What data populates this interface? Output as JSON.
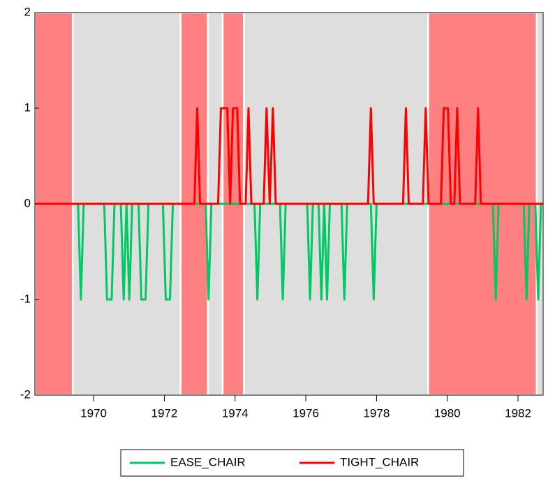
{
  "chart_data": {
    "type": "line",
    "xlim": [
      1968.34,
      1982.71
    ],
    "xticks": [
      1970,
      1972,
      1974,
      1976,
      1978,
      1980,
      1982
    ],
    "ylim": [
      -2,
      2
    ],
    "yticks": [
      2,
      1,
      0,
      -1,
      -2
    ],
    "regions": [
      {
        "start": 1968.34,
        "end": 1969.41,
        "color": "#ff8080"
      },
      {
        "start": 1969.41,
        "end": 1972.46,
        "color": "#dedede"
      },
      {
        "start": 1972.46,
        "end": 1973.23,
        "color": "#ff8080"
      },
      {
        "start": 1973.23,
        "end": 1973.65,
        "color": "#dedede"
      },
      {
        "start": 1973.65,
        "end": 1974.25,
        "color": "#ff8080"
      },
      {
        "start": 1974.25,
        "end": 1979.46,
        "color": "#dedede"
      },
      {
        "start": 1979.46,
        "end": 1982.53,
        "color": "#ff8080"
      },
      {
        "start": 1982.53,
        "end": 1982.71,
        "color": "#dedede"
      }
    ],
    "series": [
      {
        "name": "EASE_CHAIR",
        "color": "#00c864",
        "x": [
          1968.34,
          1969.56,
          1969.64,
          1969.72,
          1970.3,
          1970.38,
          1970.51,
          1970.59,
          1970.77,
          1970.85,
          1970.93,
          1971.01,
          1971.09,
          1971.27,
          1971.35,
          1971.47,
          1971.55,
          1971.96,
          1972.04,
          1972.16,
          1972.24,
          1973.17,
          1973.25,
          1973.33,
          1974.55,
          1974.63,
          1974.71,
          1975.27,
          1975.35,
          1975.43,
          1976.04,
          1976.12,
          1976.2,
          1976.36,
          1976.44,
          1976.52,
          1976.6,
          1976.68,
          1977.01,
          1977.09,
          1977.17,
          1977.84,
          1977.92,
          1978.0,
          1981.29,
          1981.37,
          1981.45,
          1982.16,
          1982.24,
          1982.32,
          1982.49,
          1982.57,
          1982.65,
          1982.71
        ],
        "values": [
          0,
          0,
          -1,
          0,
          0,
          -1,
          -1,
          0,
          0,
          -1,
          0,
          -1,
          0,
          0,
          -1,
          -1,
          0,
          0,
          -1,
          -1,
          0,
          0,
          -1,
          0,
          0,
          -1,
          0,
          0,
          -1,
          0,
          0,
          -1,
          0,
          0,
          -1,
          0,
          -1,
          0,
          0,
          -1,
          0,
          0,
          -1,
          0,
          0,
          -1,
          0,
          0,
          -1,
          0,
          0,
          -1,
          0,
          0
        ]
      },
      {
        "name": "TIGHT_CHAIR",
        "color": "#ff0000",
        "x": [
          1968.34,
          1972.85,
          1972.93,
          1973.01,
          1973.52,
          1973.6,
          1973.78,
          1973.86,
          1973.94,
          1974.06,
          1974.14,
          1974.3,
          1974.38,
          1974.46,
          1974.81,
          1974.89,
          1974.98,
          1975.07,
          1975.15,
          1977.76,
          1977.84,
          1977.92,
          1978.75,
          1978.83,
          1978.91,
          1979.31,
          1979.39,
          1979.47,
          1979.82,
          1979.9,
          1980.02,
          1980.1,
          1980.2,
          1980.28,
          1980.36,
          1980.79,
          1980.87,
          1980.95,
          1982.71
        ],
        "values": [
          0,
          0,
          1,
          0,
          0,
          1,
          1,
          0,
          1,
          1,
          0,
          0,
          1,
          0,
          0,
          1,
          0,
          1,
          0,
          0,
          1,
          0,
          0,
          1,
          0,
          0,
          1,
          0,
          0,
          1,
          1,
          0,
          0,
          1,
          0,
          0,
          1,
          0,
          0
        ]
      }
    ]
  }
}
